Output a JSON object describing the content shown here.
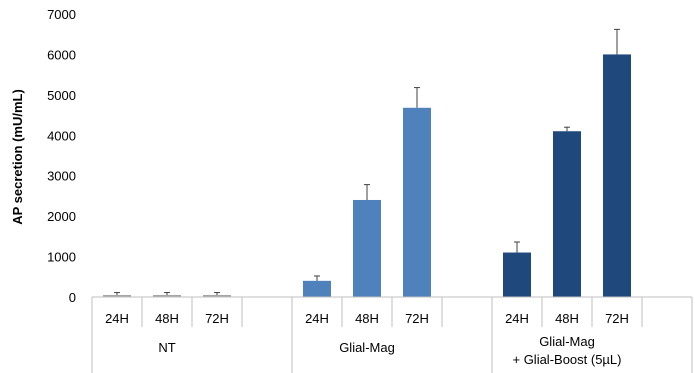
{
  "chart_data": {
    "type": "bar",
    "ylabel": "AP secretion (mU/mL)",
    "ylim": [
      0,
      7000
    ],
    "yticks": [
      0,
      1000,
      2000,
      3000,
      4000,
      5000,
      6000,
      7000
    ],
    "grid": false,
    "groups": [
      {
        "name": "NT",
        "name_line2": "",
        "color": "#A6A6A6",
        "categories": [
          "24H",
          "48H",
          "72H"
        ],
        "values": [
          50,
          50,
          50
        ],
        "errors": [
          60,
          60,
          60
        ]
      },
      {
        "name": "Glial-Mag",
        "name_line2": "",
        "color": "#4F81BD",
        "categories": [
          "24H",
          "48H",
          "72H"
        ],
        "values": [
          400,
          2400,
          4680
        ],
        "errors": [
          120,
          380,
          500
        ]
      },
      {
        "name": "Glial-Mag",
        "name_line2": "+ Glial-Boost (5µL)",
        "color": "#1F497D",
        "categories": [
          "24H",
          "48H",
          "72H"
        ],
        "values": [
          1100,
          4100,
          6000
        ],
        "errors": [
          260,
          100,
          620
        ]
      }
    ]
  }
}
